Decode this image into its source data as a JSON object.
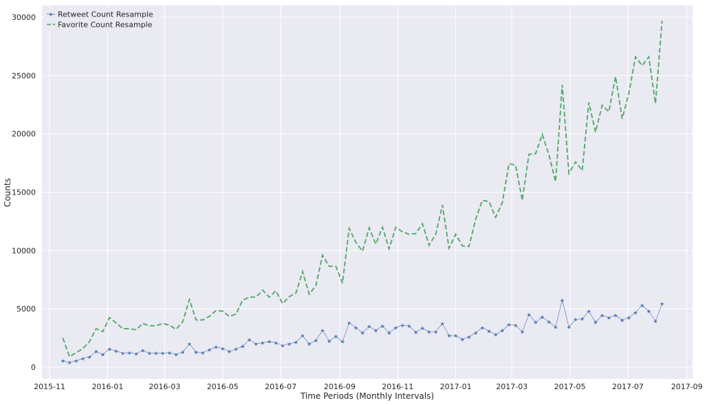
{
  "chart_data": {
    "type": "line",
    "title": "",
    "xlabel": "Time Periods (Monthly Intervals)",
    "ylabel": "Counts",
    "ylim": [
      -1000,
      31000
    ],
    "xlim": [
      "2015-10-24",
      "2017-09-07"
    ],
    "grid": true,
    "legend_position": "top-left",
    "x_ticks": [
      "2015-11",
      "2016-01",
      "2016-03",
      "2016-05",
      "2016-07",
      "2016-09",
      "2016-11",
      "2017-01",
      "2017-03",
      "2017-05",
      "2017-07",
      "2017-09"
    ],
    "y_ticks": [
      0,
      5000,
      10000,
      15000,
      20000,
      25000,
      30000
    ],
    "x": [
      "2015-11-15",
      "2015-11-22",
      "2015-11-29",
      "2015-12-06",
      "2015-12-13",
      "2015-12-20",
      "2015-12-27",
      "2016-01-03",
      "2016-01-10",
      "2016-01-17",
      "2016-01-24",
      "2016-01-31",
      "2016-02-07",
      "2016-02-14",
      "2016-02-21",
      "2016-02-28",
      "2016-03-06",
      "2016-03-13",
      "2016-03-20",
      "2016-03-27",
      "2016-04-03",
      "2016-04-10",
      "2016-04-17",
      "2016-04-24",
      "2016-05-01",
      "2016-05-08",
      "2016-05-15",
      "2016-05-22",
      "2016-05-29",
      "2016-06-05",
      "2016-06-12",
      "2016-06-19",
      "2016-06-26",
      "2016-07-03",
      "2016-07-10",
      "2016-07-17",
      "2016-07-24",
      "2016-07-31",
      "2016-08-07",
      "2016-08-14",
      "2016-08-21",
      "2016-08-28",
      "2016-09-04",
      "2016-09-11",
      "2016-09-18",
      "2016-09-25",
      "2016-10-02",
      "2016-10-09",
      "2016-10-16",
      "2016-10-23",
      "2016-10-30",
      "2016-11-06",
      "2016-11-13",
      "2016-11-20",
      "2016-11-27",
      "2016-12-04",
      "2016-12-11",
      "2016-12-18",
      "2016-12-25",
      "2017-01-01",
      "2017-01-08",
      "2017-01-15",
      "2017-01-22",
      "2017-01-29",
      "2017-02-05",
      "2017-02-12",
      "2017-02-19",
      "2017-02-26",
      "2017-03-05",
      "2017-03-12",
      "2017-03-19",
      "2017-03-26",
      "2017-04-02",
      "2017-04-09",
      "2017-04-16",
      "2017-04-23",
      "2017-04-30",
      "2017-05-07",
      "2017-05-14",
      "2017-05-21",
      "2017-05-28",
      "2017-06-04",
      "2017-06-11",
      "2017-06-18",
      "2017-06-25",
      "2017-07-02",
      "2017-07-09",
      "2017-07-16",
      "2017-07-23",
      "2017-07-30",
      "2017-08-06"
    ],
    "series": [
      {
        "name": "Retweet Count Resample",
        "color": "#4c72b0",
        "style": "solid-star",
        "values": [
          550,
          400,
          550,
          750,
          900,
          1350,
          1100,
          1550,
          1400,
          1200,
          1250,
          1150,
          1450,
          1200,
          1200,
          1200,
          1250,
          1100,
          1300,
          2000,
          1300,
          1250,
          1500,
          1750,
          1600,
          1350,
          1550,
          1800,
          2350,
          2000,
          2100,
          2200,
          2100,
          1850,
          2000,
          2150,
          2700,
          2000,
          2300,
          3150,
          2250,
          2650,
          2200,
          3800,
          3400,
          2950,
          3500,
          3150,
          3550,
          2950,
          3400,
          3600,
          3550,
          3000,
          3350,
          3050,
          3050,
          3750,
          2700,
          2700,
          2400,
          2600,
          2950,
          3400,
          3100,
          2800,
          3150,
          3650,
          3600,
          3050,
          4500,
          3850,
          4300,
          3900,
          3450,
          5750,
          3450,
          4100,
          4150,
          4800,
          3850,
          4450,
          4250,
          4450,
          4050,
          4250,
          4700,
          5300,
          4800,
          3950,
          5450
        ]
      },
      {
        "name": "Favorite Count Resample",
        "color": "#55a868",
        "style": "dashed",
        "values": [
          2500,
          900,
          1250,
          1600,
          2200,
          3300,
          3050,
          4250,
          3800,
          3300,
          3300,
          3200,
          3750,
          3550,
          3550,
          3750,
          3600,
          3250,
          3900,
          5800,
          4050,
          4050,
          4350,
          4850,
          4800,
          4350,
          4550,
          5750,
          6000,
          6000,
          6600,
          6000,
          6550,
          5450,
          6050,
          6350,
          8200,
          6250,
          7000,
          9600,
          8650,
          8650,
          7200,
          11900,
          10700,
          9950,
          11950,
          10550,
          12000,
          10150,
          12000,
          11600,
          11400,
          11450,
          12300,
          10450,
          11400,
          13900,
          10200,
          11400,
          10400,
          10350,
          12700,
          14300,
          14200,
          12850,
          14100,
          17450,
          17300,
          14300,
          18250,
          18300,
          19950,
          18200,
          15900,
          24200,
          16600,
          17600,
          16850,
          22700,
          20150,
          22450,
          21900,
          24900,
          21300,
          23450,
          26600,
          25850,
          26600,
          22600,
          29700
        ]
      }
    ]
  }
}
